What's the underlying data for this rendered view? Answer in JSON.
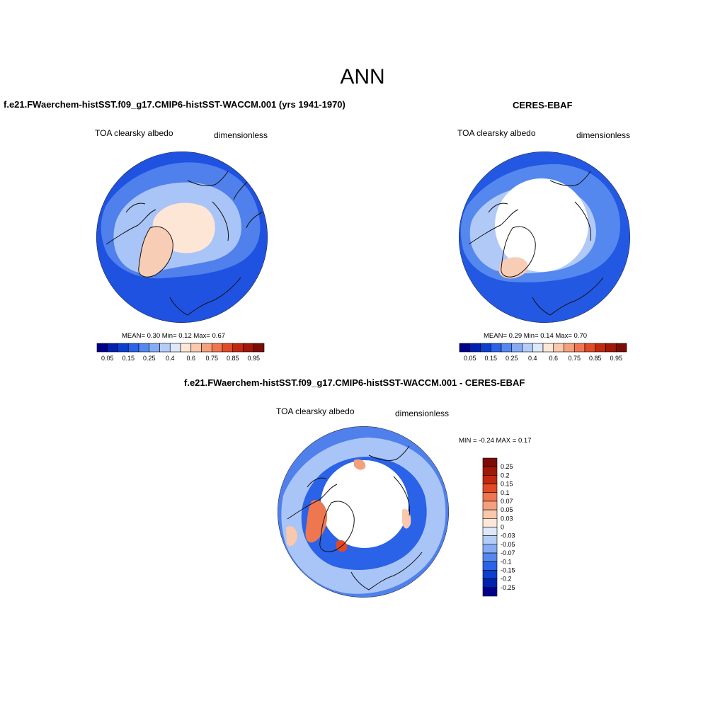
{
  "main_title": "ANN",
  "panels": [
    {
      "title": "f.e21.FWaerchem-histSST.f09_g17.CMIP6-histSST-WACCM.001 (yrs 1941-1970)",
      "left_label": "TOA clearsky albedo",
      "right_label": "dimensionless",
      "stats": "MEAN=   0.30  Min=   0.12  Max=   0.67"
    },
    {
      "title": "CERES-EBAF",
      "left_label": "TOA clearsky albedo",
      "right_label": "dimensionless",
      "stats": "MEAN=   0.29  Min=   0.14  Max=   0.70"
    },
    {
      "title": "f.e21.FWaerchem-histSST.f09_g17.CMIP6-histSST-WACCM.001 - CERES-EBAF",
      "left_label": "TOA clearsky albedo",
      "right_label": "dimensionless",
      "stats": "MIN =  -0.24 MAX =   0.17"
    }
  ],
  "colorbar_abs": {
    "ticks": [
      "0.05",
      "0.15",
      "0.25",
      "0.4",
      "0.6",
      "0.75",
      "0.85",
      "0.95"
    ],
    "colors": [
      "#00008b",
      "#0022b0",
      "#0a3fd0",
      "#2a62e8",
      "#5488f0",
      "#86abf5",
      "#b3ccf8",
      "#dde8fb",
      "#fde8d8",
      "#f9c8ad",
      "#f4a07d",
      "#ef7750",
      "#e04b25",
      "#c2280f",
      "#a01808",
      "#7c0c05"
    ]
  },
  "colorbar_diff": {
    "labels": [
      "0.25",
      "0.2",
      "0.15",
      "0.1",
      "0.07",
      "0.05",
      "0.03",
      "0",
      "-0.03",
      "-0.05",
      "-0.07",
      "-0.1",
      "-0.15",
      "-0.2",
      "-0.25"
    ],
    "colors": [
      "#7c0c05",
      "#a01808",
      "#c2280f",
      "#e04b25",
      "#ef7750",
      "#f4a07d",
      "#f9c8ad",
      "#fde8d8",
      "#dde8fb",
      "#b3ccf8",
      "#86abf5",
      "#5488f0",
      "#2a62e8",
      "#0a3fd0",
      "#0022b0",
      "#00008b"
    ]
  },
  "map_colors": {
    "ocean_deep": "#1f52e0",
    "ocean_mid": "#4f80ec",
    "ocean_light": "#a9c4f6",
    "ice_pale": "#fde6d6",
    "greenland": "#f7cdb5",
    "white": "#ffffff"
  }
}
